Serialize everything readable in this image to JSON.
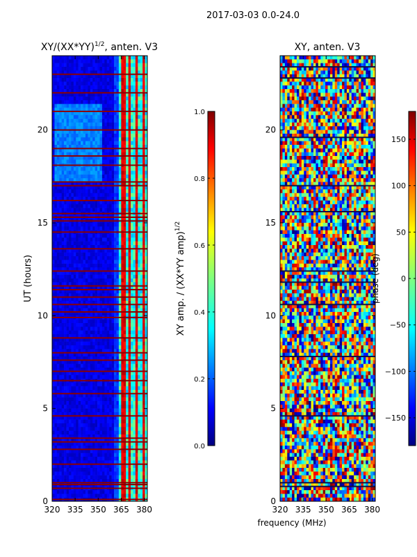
{
  "figure": {
    "suptitle": "2017-03-03 0.0-24.0",
    "shared_xlabel": "frequency (MHz)"
  },
  "chart_data": [
    {
      "type": "heatmap",
      "title": "XY/(XX*YY)",
      "title_exponent": "1/2",
      "title_suffix": ", anten. V3",
      "xlabel": "",
      "ylabel": "UT (hours)",
      "xlim": [
        320,
        382
      ],
      "ylim": [
        0,
        24
      ],
      "xticks": [
        320,
        335,
        350,
        365,
        380
      ],
      "yticks": [
        0,
        5,
        10,
        15,
        20
      ],
      "colorbar": {
        "label": "XY amp. / (XX*YY amp)",
        "label_exponent": "1/2",
        "range": [
          0.0,
          1.0
        ],
        "ticks": [
          "0.0",
          "0.2",
          "0.4",
          "0.6",
          "0.8",
          "1.0"
        ],
        "tick_values": [
          0.0,
          0.2,
          0.4,
          0.6,
          0.8,
          1.0
        ],
        "colormap": "jet"
      },
      "bands": [
        {
          "x": [
            320,
            360
          ],
          "y": [
            0,
            24
          ],
          "level": 0.1
        },
        {
          "x": [
            360,
            363
          ],
          "y": [
            0,
            24
          ],
          "level": 0.18
        },
        {
          "x": [
            363,
            382
          ],
          "y": [
            0,
            24
          ],
          "level": 0.45
        },
        {
          "x": [
            322,
            352
          ],
          "y": [
            17.3,
            21.5
          ],
          "level": 0.25
        }
      ],
      "flagged_rows_ut": [
        0.1,
        0.7,
        0.9,
        1.0,
        2.0,
        2.8,
        3.2,
        3.4,
        4.6,
        5.8,
        6.5,
        7.0,
        7.6,
        8.0,
        8.8,
        9.9,
        10.2,
        10.6,
        11.0,
        11.4,
        11.6,
        12.4,
        13.6,
        14.5,
        15.1,
        15.3,
        15.5,
        16.2,
        17.0,
        17.2,
        18.1,
        18.6,
        19.0,
        20.0,
        21.0,
        22.0,
        23.0
      ],
      "notes": [
        "Values above ~360 MHz alternate between 0.3 and 0.9 in vertical stripes"
      ]
    },
    {
      "type": "heatmap",
      "title": "XY, anten. V3",
      "xlabel": "frequency (MHz)",
      "ylabel": "",
      "xlim": [
        320,
        382
      ],
      "ylim": [
        0,
        24
      ],
      "xticks": [
        320,
        335,
        350,
        365,
        380
      ],
      "yticks": [
        0,
        5,
        10,
        15,
        20
      ],
      "colorbar": {
        "label": "phase (deg)",
        "range": [
          -180,
          180
        ],
        "ticks": [
          "−150",
          "−100",
          "−50",
          "0",
          "50",
          "100",
          "150"
        ],
        "tick_values": [
          -150,
          -100,
          -50,
          0,
          50,
          100,
          150
        ],
        "colormap": "jet"
      },
      "bands": [
        {
          "x": [
            320,
            382
          ],
          "y": [
            0,
            24
          ],
          "phase_spread": [
            -180,
            180
          ]
        }
      ],
      "flagged_rows_ut": [
        0.8,
        1.0,
        4.6,
        7.8,
        10.6,
        11.8,
        12.4,
        15.6,
        17.0,
        19.6,
        22.8,
        23.4
      ]
    }
  ]
}
